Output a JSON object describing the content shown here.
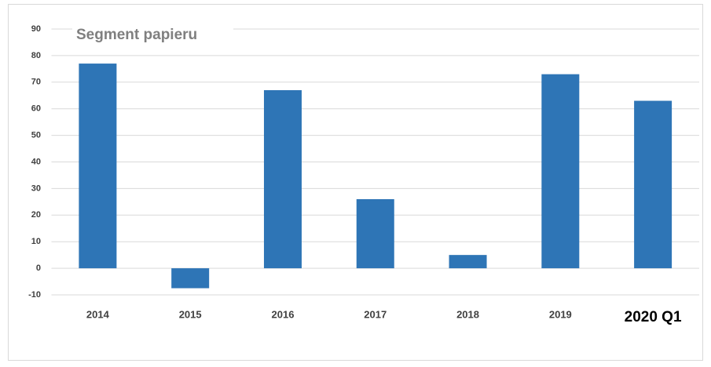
{
  "chart_data": {
    "type": "bar",
    "title": "Segment papieru",
    "categories": [
      "2014",
      "2015",
      "2016",
      "2017",
      "2018",
      "2019",
      "2020 Q1"
    ],
    "values": [
      77,
      -7.5,
      67,
      26,
      5,
      73,
      63
    ],
    "color": "#2e75b6",
    "ylim": [
      -10,
      90
    ],
    "yticks": [
      -10,
      0,
      10,
      20,
      30,
      40,
      50,
      60,
      70,
      80,
      90
    ],
    "grid": true
  }
}
